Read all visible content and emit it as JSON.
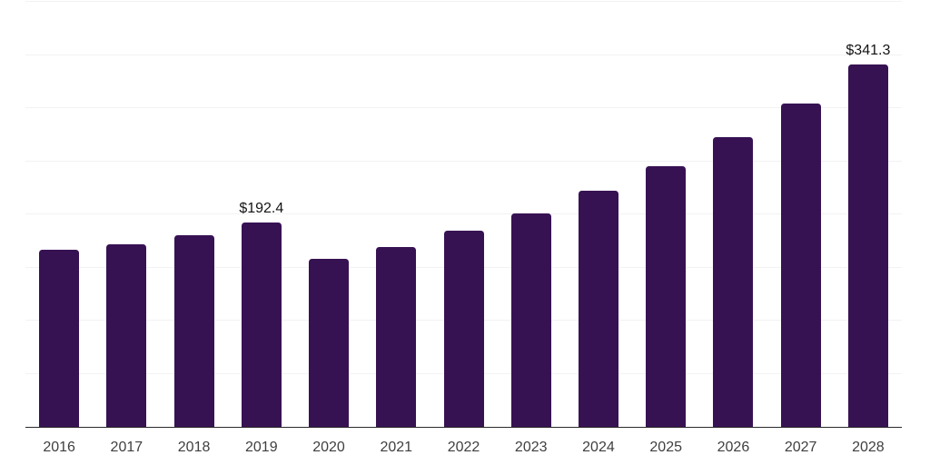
{
  "chart_data": {
    "type": "bar",
    "categories": [
      "2016",
      "2017",
      "2018",
      "2019",
      "2020",
      "2021",
      "2022",
      "2023",
      "2024",
      "2025",
      "2026",
      "2027",
      "2028"
    ],
    "values": [
      167,
      172,
      180.5,
      192.4,
      158,
      169.5,
      184.5,
      201,
      222,
      245,
      273,
      304,
      341.3
    ],
    "bar_labels": [
      "",
      "",
      "",
      "$192.4",
      "",
      "",
      "",
      "",
      "",
      "",
      "",
      "",
      "$341.3"
    ],
    "title": "",
    "xlabel": "",
    "ylabel": "",
    "ylim": [
      0,
      400
    ],
    "gridline_step": 50,
    "grid": "horizontal",
    "legend": "none",
    "colors": {
      "bar": "#371253",
      "gridline": "#f2f2f4",
      "axis_line": "#2a2a2a",
      "value_label": "#141414",
      "tick_label": "#3f3f3f",
      "background": "#ffffff"
    }
  }
}
